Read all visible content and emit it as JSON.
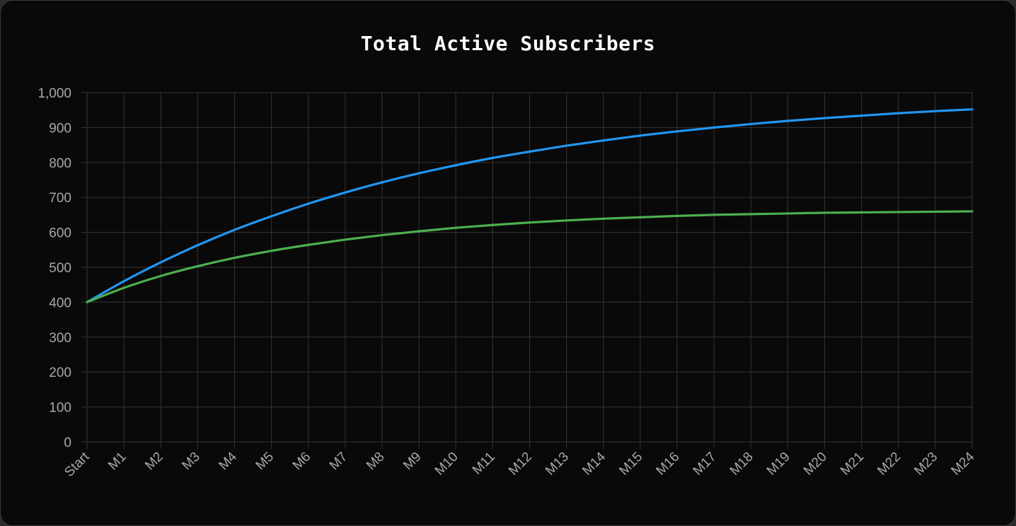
{
  "chart_data": {
    "type": "line",
    "title": "Total Active Subscribers",
    "xlabel": "",
    "ylabel": "",
    "ylim": [
      0,
      1000
    ],
    "yticks": [
      0,
      100,
      200,
      300,
      400,
      500,
      600,
      700,
      800,
      900,
      1000
    ],
    "ytick_labels": [
      "0",
      "100",
      "200",
      "300",
      "400",
      "500",
      "600",
      "700",
      "800",
      "900",
      "1,000"
    ],
    "categories": [
      "Start",
      "M1",
      "M2",
      "M3",
      "M4",
      "M5",
      "M6",
      "M7",
      "M8",
      "M9",
      "M10",
      "M11",
      "M12",
      "M13",
      "M14",
      "M15",
      "M16",
      "M17",
      "M18",
      "M19",
      "M20",
      "M21",
      "M22",
      "M23",
      "M24"
    ],
    "grid": true,
    "legend": "none",
    "series": [
      {
        "color": "#2196f3",
        "values": [
          400,
          460,
          514,
          563,
          607,
          646,
          682,
          714,
          743,
          769,
          792,
          813,
          831,
          848,
          863,
          877,
          889,
          900,
          910,
          919,
          927,
          934,
          941,
          947,
          952
        ]
      },
      {
        "color": "#4caf50",
        "values": [
          400,
          441,
          475,
          503,
          527,
          547,
          564,
          579,
          592,
          603,
          613,
          621,
          628,
          634,
          639,
          643,
          647,
          650,
          652,
          654,
          656,
          657,
          658,
          659,
          660
        ]
      }
    ]
  }
}
